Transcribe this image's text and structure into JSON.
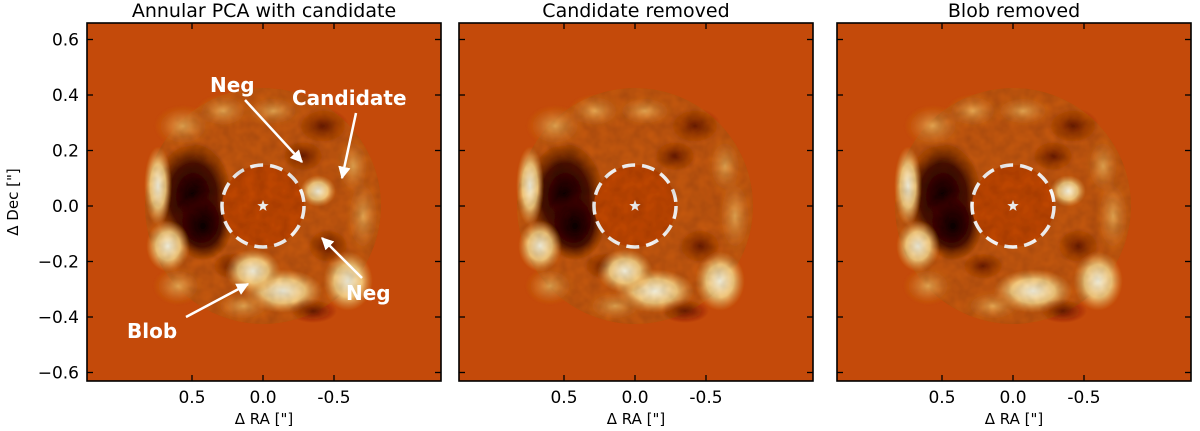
{
  "figure": {
    "colors": {
      "background": "#c44a0a",
      "bright": "#fff4c8",
      "mid": "#e69a40",
      "dark": "#160300",
      "mask_line": "#ffffff",
      "arrow": "#ffffff"
    },
    "x_axis_label": "Δ RA [\"]",
    "y_axis_label": "Δ Dec [\"]",
    "x_ticks": [
      "0.5",
      "0.0",
      "-0.5"
    ],
    "y_ticks": [
      "0.6",
      "0.4",
      "0.2",
      "0.0",
      "−0.2",
      "−0.4",
      "−0.6"
    ],
    "panels": [
      {
        "title": "Annular PCA with candidate",
        "annotations": {
          "neg_top": "Neg",
          "candidate": "Candidate",
          "neg_right": "Neg",
          "blob": "Blob"
        }
      },
      {
        "title": "Candidate removed"
      },
      {
        "title": "Blob removed"
      }
    ]
  }
}
